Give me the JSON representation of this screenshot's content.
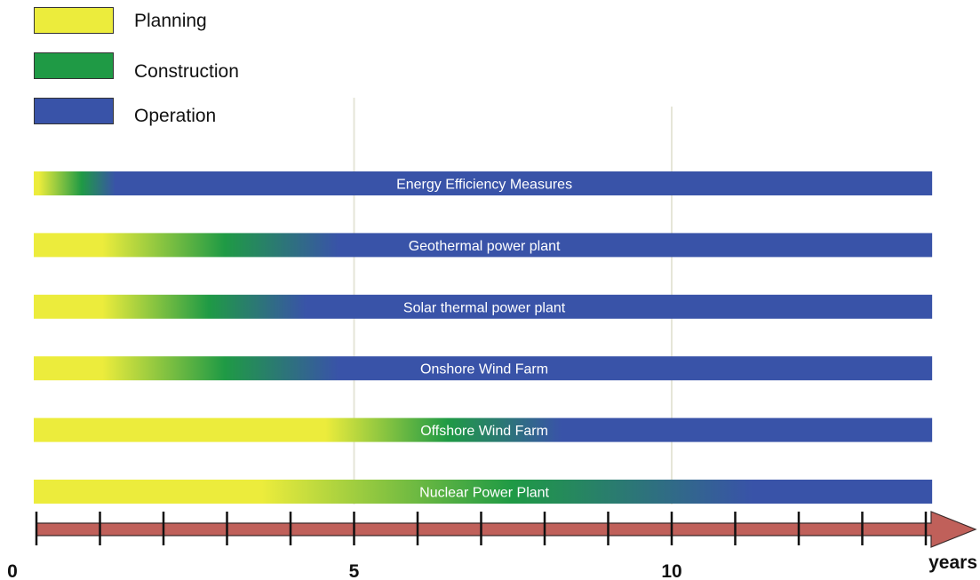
{
  "legend": {
    "planning": {
      "label": "Planning",
      "color": "#ecec3c"
    },
    "construction": {
      "label": "Construction",
      "color": "#1f9a45"
    },
    "operation": {
      "label": "Operation",
      "color": "#3953a8"
    }
  },
  "chart_data": {
    "type": "gantt",
    "xlabel": "years",
    "xlim": [
      0,
      14
    ],
    "x_ticks": [
      0,
      5,
      10
    ],
    "minor_tick_step": 1,
    "gridlines_at": [
      5,
      10
    ],
    "series": [
      {
        "name": "Energy Efficiency Measures",
        "planning_end": 0.5,
        "construction_end": 1.0
      },
      {
        "name": "Geothermal power plant",
        "planning_end": 1.5,
        "construction_end": 4.5
      },
      {
        "name": "Solar thermal power plant",
        "planning_end": 1.5,
        "construction_end": 4.0
      },
      {
        "name": "Onshore Wind Farm",
        "planning_end": 1.5,
        "construction_end": 4.5
      },
      {
        "name": "Offshore Wind Farm",
        "planning_end": 5.0,
        "construction_end": 8.0
      },
      {
        "name": "Nuclear Power Plant",
        "planning_end": 4.0,
        "construction_end": 11.0
      }
    ],
    "colors": {
      "planning": "#ecec3c",
      "construction": "#1f9a45",
      "operation": "#3953a8",
      "axis_arrow": "#c0605a",
      "gridline": "#e6e6d8"
    }
  }
}
